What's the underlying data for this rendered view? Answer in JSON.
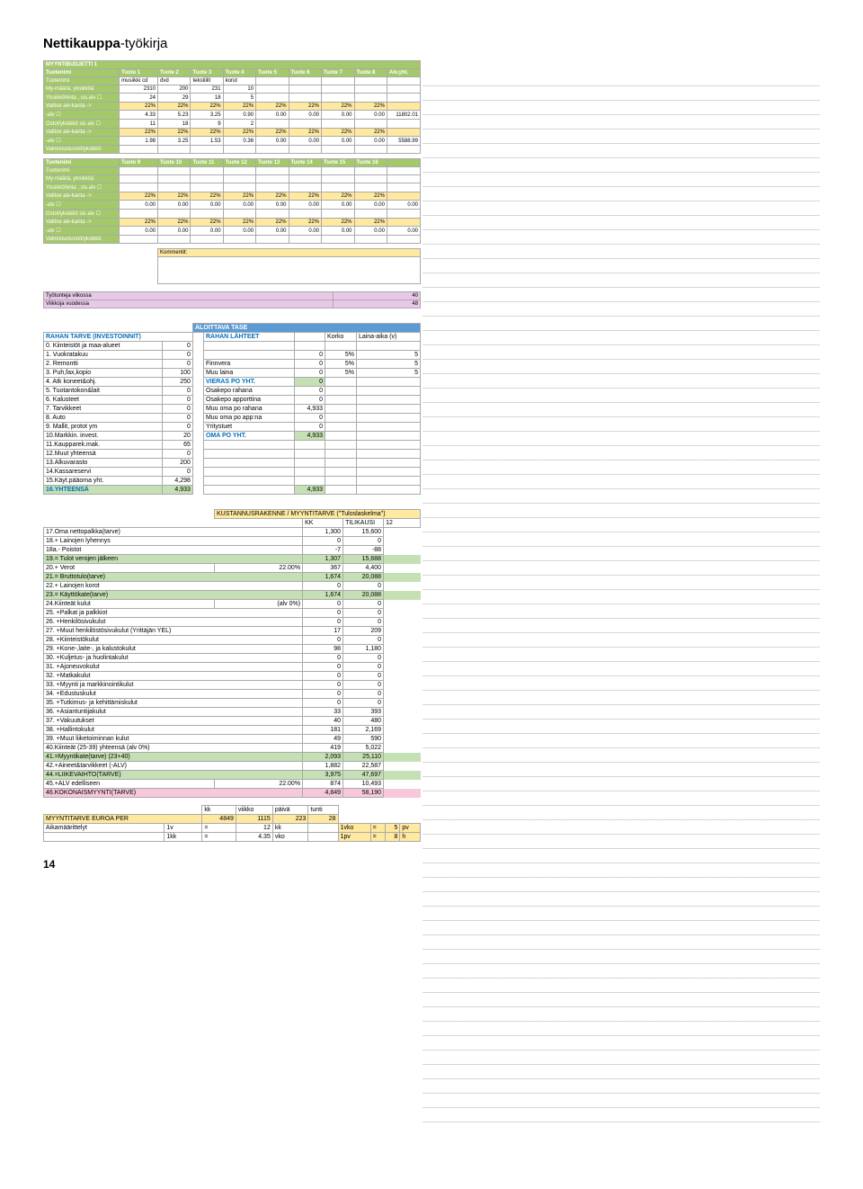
{
  "page": {
    "title_bold": "Nettikauppa",
    "title_light": "-työkirja",
    "page_number": "14"
  },
  "budget": {
    "title": "MYYNTIBUDJETTI 1",
    "cols": [
      "Tuote 1",
      "Tuote 2",
      "Tuote 3",
      "Tuote 4",
      "Tuote 5",
      "Tuote 6",
      "Tuote 7",
      "Tuote 8",
      "Alv.yht."
    ],
    "tuotenimi_row": [
      "musiikki cd",
      "dvd",
      "tekstiilit",
      "korut",
      "",
      "",
      "",
      "",
      ""
    ],
    "rows1": [
      {
        "label": "My-määrä, yksikköä",
        "vals": [
          "2310",
          "200",
          "231",
          "10",
          "",
          "",
          "",
          "",
          ""
        ]
      },
      {
        "label": "Yksikköhinta , sis.alv ☐",
        "vals": [
          "24",
          "29",
          "18",
          "5",
          "",
          "",
          "",
          "",
          ""
        ]
      },
      {
        "label": "Valitse alv-kanta ->",
        "cls": "yellow",
        "vals": [
          "22%",
          "22%",
          "22%",
          "22%",
          "22%",
          "22%",
          "22%",
          "22%",
          ""
        ]
      },
      {
        "label": "-alv ☐",
        "vals": [
          "4.33",
          "5.23",
          "3.25",
          "0.90",
          "0.00",
          "0.00",
          "0.00",
          "0.00",
          "11802.01"
        ]
      },
      {
        "label": "Ostot/yksikkö sis alv ☐",
        "vals": [
          "11",
          "18",
          "9",
          "2",
          "",
          "",
          "",
          "",
          ""
        ]
      },
      {
        "label": "Valitse alv-kanta ->",
        "cls": "yellow",
        "vals": [
          "22%",
          "22%",
          "22%",
          "22%",
          "22%",
          "22%",
          "22%",
          "22%",
          ""
        ]
      },
      {
        "label": "-alv ☐",
        "vals": [
          "1.98",
          "3.25",
          "1.53",
          "0.36",
          "0.00",
          "0.00",
          "0.00",
          "0.00",
          "5588.99"
        ]
      },
      {
        "label": "Valmistustunnit/yksikkö",
        "vals": [
          "",
          "",
          "",
          "",
          "",
          "",
          "",
          "",
          ""
        ]
      }
    ],
    "cols2": [
      "Tuote 9",
      "Tuote 10",
      "Tuote 11",
      "Tuote 12",
      "Tuote 13",
      "Tuote 14",
      "Tuote 15",
      "Tuote 16",
      ""
    ],
    "rows2": [
      {
        "label": "Tuotenimi",
        "vals": [
          "",
          "",
          "",
          "",
          "",
          "",
          "",
          "",
          ""
        ]
      },
      {
        "label": "My-määrä, yksikköä",
        "vals": [
          "",
          "",
          "",
          "",
          "",
          "",
          "",
          "",
          ""
        ]
      },
      {
        "label": "Yksikköhinta , sis.alv ☐",
        "vals": [
          "",
          "",
          "",
          "",
          "",
          "",
          "",
          "",
          ""
        ]
      },
      {
        "label": "Valitse alv-kanta ->",
        "cls": "yellow",
        "vals": [
          "22%",
          "22%",
          "22%",
          "22%",
          "22%",
          "22%",
          "22%",
          "22%",
          ""
        ]
      },
      {
        "label": "-alv ☐",
        "vals": [
          "0.00",
          "0.00",
          "0.00",
          "0.00",
          "0.00",
          "0.00",
          "0.00",
          "0.00",
          "0.00"
        ]
      },
      {
        "label": "Ostot/yksikkö sis alv ☐",
        "vals": [
          "",
          "",
          "",
          "",
          "",
          "",
          "",
          "",
          ""
        ]
      },
      {
        "label": "Valitse alv-kanta ->",
        "cls": "yellow",
        "vals": [
          "22%",
          "22%",
          "22%",
          "22%",
          "22%",
          "22%",
          "22%",
          "22%",
          ""
        ]
      },
      {
        "label": "-alv ☐",
        "vals": [
          "0.00",
          "0.00",
          "0.00",
          "0.00",
          "0.00",
          "0.00",
          "0.00",
          "0.00",
          "0.00"
        ]
      },
      {
        "label": "Valmistustunnit/yksikkö",
        "vals": [
          "",
          "",
          "",
          "",
          "",
          "",
          "",
          "",
          ""
        ]
      }
    ],
    "kommentit": "Kommentit:",
    "foot": [
      {
        "label": "Työtunteja viikossa",
        "val": "40",
        "cls": "roword"
      },
      {
        "label": "Viikkoja vuodessa",
        "val": "48",
        "cls": "roword"
      }
    ]
  },
  "tase": {
    "header": "ALOITTAVA TASE",
    "left_header": "RAHAN TARVE (INVESTOINNIT)",
    "right_header": "RAHAN LÄHTEET",
    "right_cols": [
      "Korko",
      "Laina-aika (v)"
    ],
    "left": [
      [
        "0. Kiinteistöt ja maa-alueet",
        "0"
      ],
      [
        "1. Vuokratakuu",
        "0"
      ],
      [
        "2. Remontti",
        "0"
      ],
      [
        "3. Puh,fax,kopio",
        "100"
      ],
      [
        "4. Atk koneet&ohj.",
        "250"
      ],
      [
        "5. Tuotantokon&lait",
        "0"
      ],
      [
        "6. Kalusteet",
        "0"
      ],
      [
        "7. Tarvikkeet",
        "0"
      ],
      [
        "8. Auto",
        "0"
      ],
      [
        "9. Mallit, protot ym",
        "0"
      ],
      [
        "10.Markkin. invest.",
        "20"
      ],
      [
        "11.Kaupparek.mak.",
        "65"
      ],
      [
        "12.Muut yhteensä",
        "0"
      ],
      [
        "13.Alkuvarasto",
        "200"
      ],
      [
        "14.Kassareservi",
        "0"
      ],
      [
        "15.Käyt.pääoma yht.",
        "4,298"
      ],
      [
        "16.YHTEENSÄ",
        "4,933"
      ]
    ],
    "right": [
      [
        "",
        "",
        "",
        ""
      ],
      [
        "",
        "0",
        "5%",
        "5"
      ],
      [
        "Finnvera",
        "0",
        "5%",
        "5"
      ],
      [
        "Muu laina",
        "0",
        "5%",
        "5"
      ],
      [
        "VIERAS PO YHT.",
        "0",
        "",
        ""
      ],
      [
        "Osakepo rahana",
        "0",
        "",
        ""
      ],
      [
        "Osakepo apporttina",
        "0",
        "",
        ""
      ],
      [
        "Muu oma po rahana",
        "4,933",
        "",
        ""
      ],
      [
        "Muu oma po app:na",
        "0",
        "",
        ""
      ],
      [
        "Yritystuet",
        "0",
        "",
        ""
      ],
      [
        "OMA PO YHT.",
        "4,933",
        "",
        ""
      ],
      [
        "",
        "",
        "",
        ""
      ],
      [
        "",
        "",
        "",
        ""
      ],
      [
        "",
        "",
        "",
        ""
      ],
      [
        "",
        "",
        "",
        ""
      ],
      [
        "",
        "",
        "",
        ""
      ],
      [
        "",
        "4,933",
        "",
        ""
      ]
    ]
  },
  "kust": {
    "title": "KUSTANNUSRAKENNE / MYYNTITARVE (\"Tuloslaskelma\")",
    "headers": [
      "KK",
      "TILIKAUSI",
      "12"
    ],
    "rows": [
      {
        "l": "17.Oma nettopalkka(tarve)",
        "kk": "1,300",
        "t": "15,600"
      },
      {
        "l": "18.+ Lainojen lyhennys",
        "kk": "0",
        "t": "0"
      },
      {
        "l": "18a.- Poistot",
        "kk": "-7",
        "t": "-88"
      },
      {
        "l": "19.= Tulot verojen jälkeen",
        "kk": "1,307",
        "t": "15,688",
        "cls": "hl-green"
      },
      {
        "l": "20.+ Verot",
        "extra": "22.00%",
        "kk": "367",
        "t": "4,400"
      },
      {
        "l": "21.= Bruttotulo(tarve)",
        "kk": "1,674",
        "t": "20,088",
        "cls": "hl-green"
      },
      {
        "l": "22.+ Lainojen korot",
        "kk": "0",
        "t": "0"
      },
      {
        "l": "23.= Käyttökate(tarve)",
        "kk": "1,674",
        "t": "20,088",
        "cls": "hl-green"
      },
      {
        "l": "24.Kiinteät kulut",
        "extra": "(alv 0%)",
        "kk": "0",
        "t": "0"
      },
      {
        "l": "25.        +Palkat ja palkkiot",
        "kk": "0",
        "t": "0"
      },
      {
        "l": "26.        +Henkilösivukulut",
        "kk": "0",
        "t": "0"
      },
      {
        "l": "27.        +Muut henkilöstösivukulut (Yrittäjän YEL)",
        "kk": "17",
        "t": "209"
      },
      {
        "l": "28.        +Kiinteistökulut",
        "kk": "0",
        "t": "0"
      },
      {
        "l": "29.        +Kone-,laite-, ja kalustokulut",
        "kk": "98",
        "t": "1,180"
      },
      {
        "l": "30.        +Kuljetus- ja huolintakulut",
        "kk": "0",
        "t": "0"
      },
      {
        "l": "31.        +Ajoneuvokulut",
        "kk": "0",
        "t": "0"
      },
      {
        "l": "32.        +Matkakulut",
        "kk": "0",
        "t": "0"
      },
      {
        "l": "33.        +Myynti ja markkinointikulut",
        "kk": "0",
        "t": "0"
      },
      {
        "l": "34.        +Edustuskulut",
        "kk": "0",
        "t": "0"
      },
      {
        "l": "35.        +Tutkimus- ja kehittämiskulut",
        "kk": "0",
        "t": "0"
      },
      {
        "l": "36.        +Asiantuntijakulut",
        "kk": "33",
        "t": "393"
      },
      {
        "l": "37.        +Vakuutukset",
        "kk": "40",
        "t": "480"
      },
      {
        "l": "38.        +Hallintokulut",
        "kk": "181",
        "t": "2,169"
      },
      {
        "l": "39.        +Muut liiketoiminnan kulut",
        "kk": "49",
        "t": "590"
      },
      {
        "l": "40.Kiinteät (25-39) yhteensä (alv 0%)",
        "kk": "419",
        "t": "5,022"
      },
      {
        "l": "41.=Myyntikate(tarve) (23+40)",
        "kk": "2,093",
        "t": "25,110",
        "cls": "hl-green"
      },
      {
        "l": "42.+Aineet&tarvikkeet (-ALV)",
        "kk": "1,882",
        "t": "22,587"
      },
      {
        "l": "44.=LIIKEVAIHTO(TARVE)",
        "kk": "3,975",
        "t": "47,697",
        "cls": "hl-green"
      },
      {
        "l": "45.+ALV edelliseen",
        "extra": "22.00%",
        "kk": "874",
        "t": "10,493"
      },
      {
        "l": "46.KOKONAISMYYNTI(TARVE)",
        "kk": "4,849",
        "t": "58,190",
        "cls": "hl-pink"
      }
    ]
  },
  "myynti": {
    "headers": [
      "kk",
      "viikko",
      "päivä",
      "tunti"
    ],
    "row1": {
      "label": "MYYNTITARVE EUROA PER",
      "vals": [
        "4849",
        "1115",
        "223",
        "28"
      ]
    },
    "row2": [
      "Aikamäärittelyt",
      "1v",
      "=",
      "12",
      "kk",
      "",
      "1vko",
      "=",
      "5",
      "pv"
    ],
    "row3": [
      "",
      "1kk",
      "=",
      "4.35",
      "vko",
      "",
      "1pv",
      "=",
      "8",
      "h"
    ]
  }
}
